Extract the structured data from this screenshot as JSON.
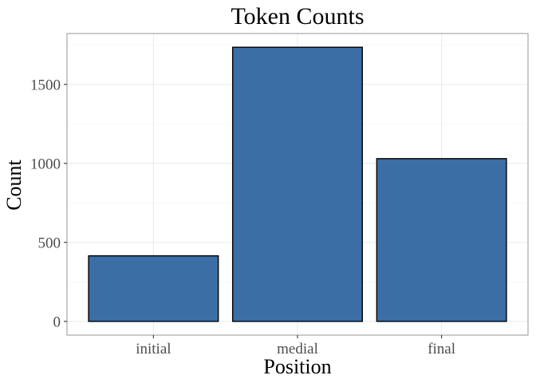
{
  "chart_data": {
    "type": "bar",
    "title": "Token Counts",
    "xlabel": "Position",
    "ylabel": "Count",
    "categories": [
      "initial",
      "medial",
      "final"
    ],
    "values": [
      415,
      1735,
      1030
    ],
    "ylim": [
      -87,
      1822
    ],
    "yticks": [
      0,
      500,
      1000,
      1500
    ],
    "ytick_labels": [
      "0",
      "500",
      "1000",
      "1500"
    ],
    "grid": true,
    "legend": "none",
    "colors": {
      "bar_fill": "#3a6ea5",
      "bar_outline": "#000000"
    }
  }
}
